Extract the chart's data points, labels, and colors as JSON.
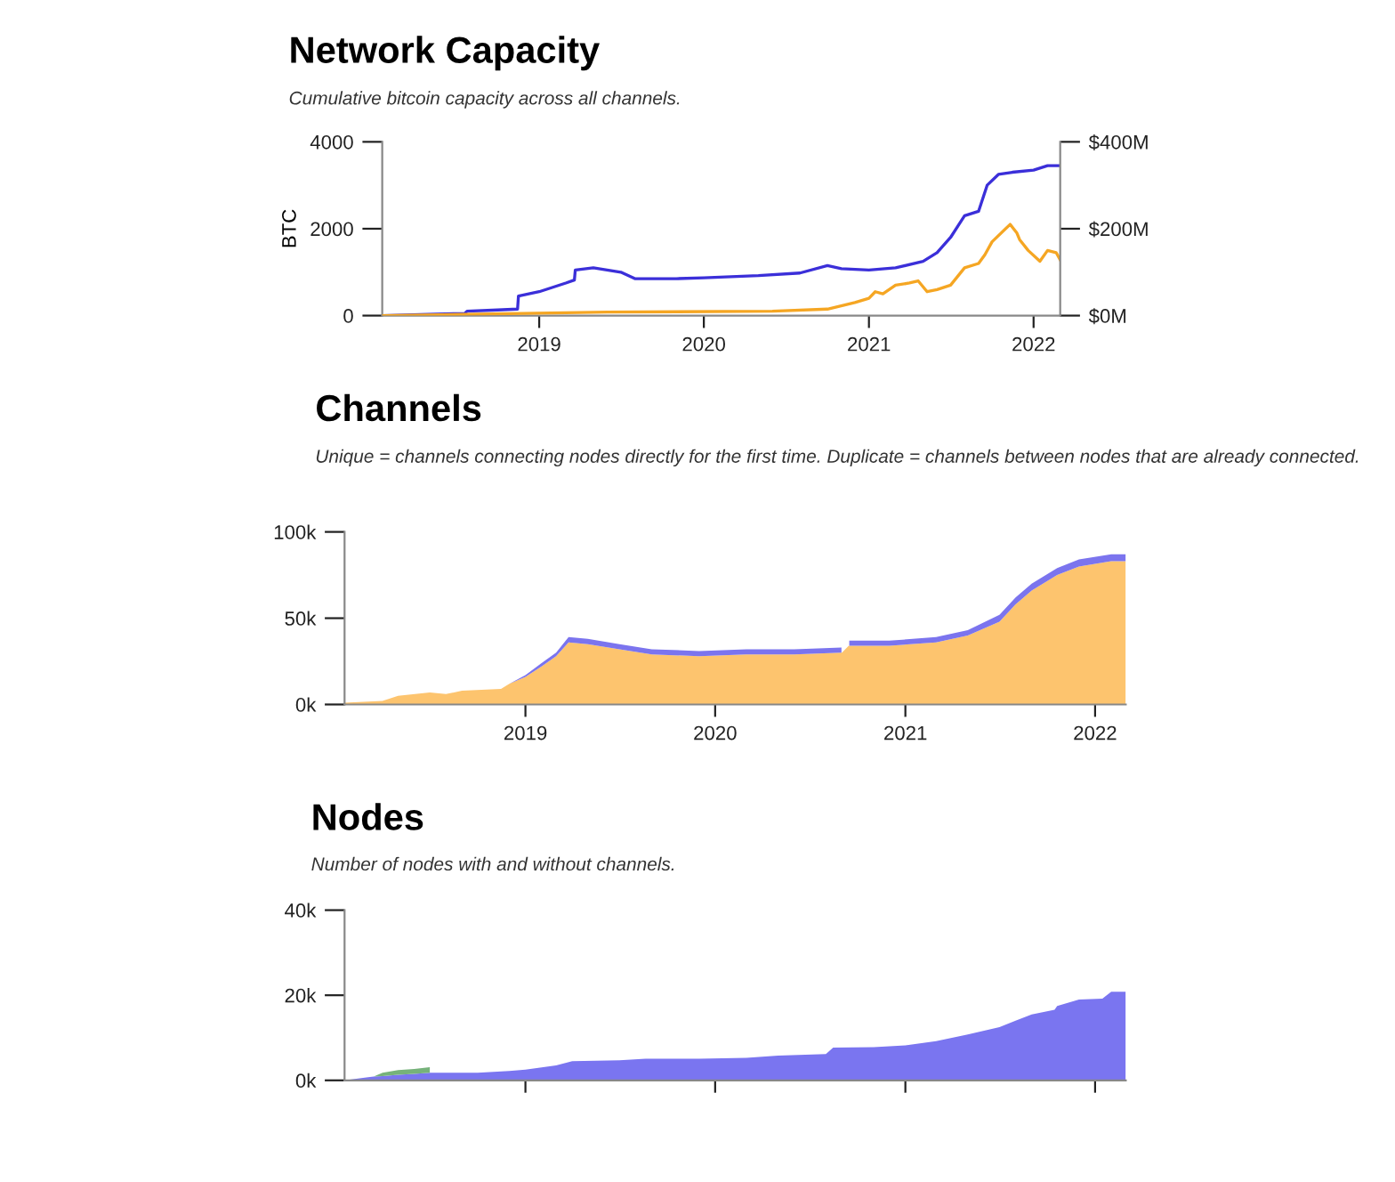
{
  "chart_data": [
    {
      "type": "line",
      "title": "Network Capacity",
      "subtitle": "Cumulative bitcoin capacity across all channels.",
      "ylabel": "BTC",
      "xlim": [
        "2018-01-18",
        "2022-03-01"
      ],
      "xticks": [
        "2019",
        "2020",
        "2021",
        "2022"
      ],
      "ylim": [
        0,
        4000
      ],
      "yticks": [
        0,
        2000,
        4000
      ],
      "y2lim": [
        0,
        400
      ],
      "y2ticks": [
        {
          "value": 0,
          "label": "$0M"
        },
        {
          "value": 200,
          "label": "$200M"
        },
        {
          "value": 400,
          "label": "$400M"
        }
      ],
      "grid": false,
      "legend": false,
      "series": [
        {
          "color": "#3b2fd9",
          "x": [
            "2018-01-18",
            "2018-05-01",
            "2018-07-20",
            "2018-07-25",
            "2018-10-01",
            "2018-11-14",
            "2018-11-16",
            "2019-01-01",
            "2019-03-01",
            "2019-03-20",
            "2019-03-22",
            "2019-05-01",
            "2019-07-01",
            "2019-08-01",
            "2019-11-01",
            "2020-01-01",
            "2020-05-01",
            "2020-08-01",
            "2020-10-01",
            "2020-11-01",
            "2021-01-01",
            "2021-03-01",
            "2021-05-01",
            "2021-06-01",
            "2021-07-01",
            "2021-08-01",
            "2021-09-01",
            "2021-09-20",
            "2021-10-15",
            "2021-11-15",
            "2022-01-01",
            "2022-02-01",
            "2022-03-01"
          ],
          "values": [
            0,
            30,
            50,
            100,
            130,
            150,
            450,
            550,
            750,
            820,
            1050,
            1100,
            1000,
            850,
            850,
            870,
            920,
            980,
            1150,
            1080,
            1050,
            1100,
            1250,
            1450,
            1800,
            2300,
            2400,
            3000,
            3250,
            3300,
            3350,
            3450,
            3450
          ]
        },
        {
          "color": "#f5a623",
          "axis": "y2",
          "x": [
            "2018-01-18",
            "2019-06-01",
            "2020-06-01",
            "2020-10-01",
            "2020-12-01",
            "2021-01-01",
            "2021-01-15",
            "2021-02-01",
            "2021-03-01",
            "2021-04-01",
            "2021-04-20",
            "2021-05-10",
            "2021-06-01",
            "2021-07-01",
            "2021-08-01",
            "2021-09-01",
            "2021-09-15",
            "2021-10-01",
            "2021-11-10",
            "2021-11-25",
            "2021-12-01",
            "2021-12-20",
            "2022-01-15",
            "2022-02-01",
            "2022-02-20",
            "2022-03-01"
          ],
          "values": [
            0,
            8,
            10,
            15,
            30,
            40,
            55,
            50,
            70,
            75,
            80,
            55,
            60,
            70,
            110,
            120,
            140,
            170,
            210,
            190,
            175,
            150,
            125,
            150,
            145,
            128
          ]
        }
      ]
    },
    {
      "type": "area",
      "stacked": true,
      "title": "Channels",
      "subtitle": "Unique = channels connecting nodes directly for the first time. Duplicate = channels between nodes that are already connected.",
      "xlim": [
        "2018-01-18",
        "2022-03-01"
      ],
      "xticks": [
        "2019",
        "2020",
        "2021",
        "2022"
      ],
      "ylim": [
        0,
        100000
      ],
      "yticks": [
        {
          "value": 0,
          "label": "0k"
        },
        {
          "value": 50000,
          "label": "50k"
        },
        {
          "value": 100000,
          "label": "100k"
        }
      ],
      "grid": false,
      "legend": false,
      "x": [
        "2018-01-18",
        "2018-04-01",
        "2018-05-01",
        "2018-07-01",
        "2018-08-01",
        "2018-09-01",
        "2018-11-15",
        "2018-12-01",
        "2019-01-01",
        "2019-02-01",
        "2019-03-01",
        "2019-03-25",
        "2019-05-01",
        "2019-07-01",
        "2019-09-01",
        "2019-12-01",
        "2020-03-01",
        "2020-06-01",
        "2020-08-31",
        "2020-09-01",
        "2020-09-14",
        "2020-09-15",
        "2020-10-01",
        "2020-12-01",
        "2021-03-01",
        "2021-05-01",
        "2021-07-01",
        "2021-08-01",
        "2021-09-01",
        "2021-10-20",
        "2021-12-01",
        "2022-02-01",
        "2022-03-01"
      ],
      "series": [
        {
          "color": "#fdc46e",
          "values": [
            1000,
            2000,
            5000,
            7000,
            6000,
            8000,
            9000,
            12000,
            16000,
            22000,
            28000,
            36000,
            35000,
            32000,
            29000,
            28000,
            29000,
            29000,
            30000,
            30000,
            34000,
            34000,
            34000,
            34000,
            36000,
            40000,
            48000,
            58000,
            66000,
            75000,
            80000,
            83000,
            83000
          ]
        },
        {
          "color": "#7b74ee",
          "values": [
            0,
            0,
            0,
            0,
            0,
            0,
            0,
            0,
            1000,
            2000,
            2000,
            3000,
            3000,
            3000,
            3000,
            3000,
            3000,
            3000,
            3000,
            null,
            null,
            3000,
            3000,
            3000,
            3000,
            3000,
            4000,
            4000,
            4000,
            4000,
            4000,
            4000,
            4000
          ]
        }
      ]
    },
    {
      "type": "area",
      "stacked": true,
      "title": "Nodes",
      "subtitle": "Number of nodes with and without channels.",
      "xlim": [
        "2018-01-18",
        "2022-03-01"
      ],
      "xticks": [
        {
          "value": "2019",
          "label": null
        },
        {
          "value": "2020",
          "label": null
        },
        {
          "value": "2021",
          "label": null
        },
        {
          "value": "2022",
          "label": null
        }
      ],
      "ylim": [
        0,
        40000
      ],
      "yticks": [
        {
          "value": 0,
          "label": "0k"
        },
        {
          "value": 20000,
          "label": "20k"
        },
        {
          "value": 40000,
          "label": "40k"
        }
      ],
      "grid": false,
      "legend": false,
      "tick_labels": "y",
      "x": [
        "2018-01-18",
        "2018-03-01",
        "2018-03-15",
        "2018-04-01",
        "2018-05-01",
        "2018-06-01",
        "2018-07-01",
        "2018-07-02",
        "2018-10-01",
        "2018-12-01",
        "2019-01-01",
        "2019-03-01",
        "2019-04-01",
        "2019-07-01",
        "2019-08-20",
        "2019-12-01",
        "2020-03-01",
        "2020-05-01",
        "2020-08-01",
        "2020-08-15",
        "2020-11-01",
        "2021-01-01",
        "2021-03-01",
        "2021-05-01",
        "2021-07-01",
        "2021-08-01",
        "2021-09-01",
        "2021-10-15",
        "2021-10-20",
        "2021-12-01",
        "2022-01-15",
        "2022-02-01",
        "2022-03-01"
      ],
      "series": [
        {
          "color": "#7a75f0",
          "values": [
            0,
            700,
            900,
            1000,
            1300,
            1500,
            1800,
            1800,
            1800,
            2200,
            2500,
            3500,
            4500,
            4700,
            5100,
            5100,
            5300,
            5800,
            6200,
            7700,
            7800,
            8200,
            9200,
            10800,
            12500,
            14000,
            15500,
            16600,
            17500,
            19000,
            19200,
            20800,
            20800
          ]
        },
        {
          "color": "#76b27a",
          "values": [
            null,
            null,
            0,
            800,
            1100,
            1200,
            1300,
            null,
            null,
            null,
            null,
            null,
            null,
            null,
            null,
            null,
            null,
            null,
            null,
            null,
            null,
            null,
            null,
            null,
            null,
            null,
            null,
            null,
            null,
            null,
            null,
            null,
            null
          ]
        }
      ]
    }
  ]
}
